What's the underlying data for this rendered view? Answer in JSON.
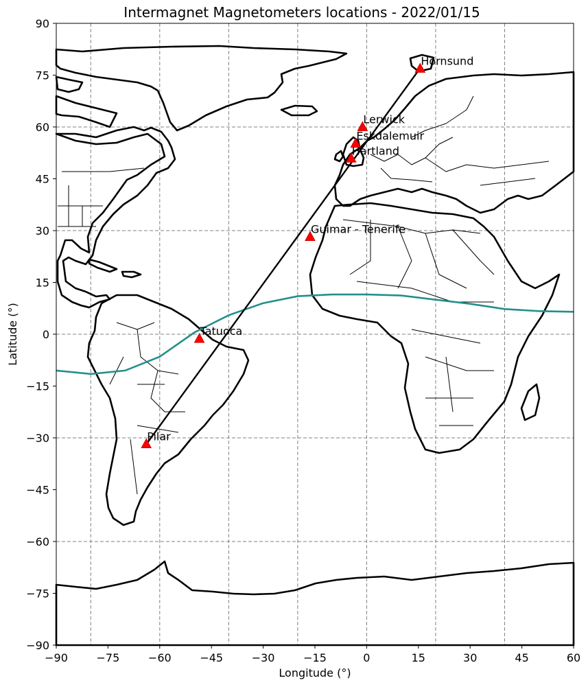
{
  "chart_data": {
    "type": "scatter",
    "title": "Intermagnet Magnetometers locations - 2022/01/15",
    "xlabel": "Longitude (°)",
    "ylabel": "Latitude (°)",
    "xlim": [
      -90,
      60
    ],
    "ylim": [
      -90,
      90
    ],
    "xticks": [
      -90,
      -75,
      -60,
      -45,
      -30,
      -15,
      0,
      15,
      30,
      45,
      60
    ],
    "xtick_labels": [
      "−90",
      "−75",
      "−60",
      "−45",
      "−30",
      "−15",
      "0",
      "15",
      "30",
      "45",
      "60"
    ],
    "yticks": [
      -90,
      -75,
      -60,
      -45,
      -30,
      -15,
      0,
      15,
      30,
      45,
      60,
      75,
      90
    ],
    "ytick_labels": [
      "−90",
      "−75",
      "−60",
      "−45",
      "−30",
      "−15",
      "0",
      "15",
      "30",
      "45",
      "60",
      "75",
      "90"
    ],
    "grid_lon": [
      -80,
      -60,
      -40,
      -20,
      0,
      20,
      40
    ],
    "grid_lat": [
      -60,
      -30,
      0,
      30,
      60
    ],
    "grid": true,
    "marker_color": "#ff0000",
    "equator_color": "#22908a",
    "stations": [
      {
        "name": "Hornsund",
        "lon": 15.5,
        "lat": 77.0
      },
      {
        "name": "Lerwick",
        "lon": -1.2,
        "lat": 60.1
      },
      {
        "name": "Eskdalemuir",
        "lon": -3.2,
        "lat": 55.3
      },
      {
        "name": "Hartland",
        "lon": -4.5,
        "lat": 51.0
      },
      {
        "name": "Guimar - Tenerife",
        "lon": -16.4,
        "lat": 28.3
      },
      {
        "name": "Tatuoca",
        "lon": -48.5,
        "lat": -1.2
      },
      {
        "name": "Pilar",
        "lon": -63.9,
        "lat": -31.7
      }
    ],
    "track_line": [
      [
        -64.0,
        -32.0
      ],
      [
        15.5,
        77.0
      ]
    ],
    "magnetic_equator": [
      [
        -90,
        -10.5
      ],
      [
        -80,
        -11.5
      ],
      [
        -70,
        -10.5
      ],
      [
        -60,
        -6.5
      ],
      [
        -50,
        0.5
      ],
      [
        -40,
        5.5
      ],
      [
        -30,
        9.0
      ],
      [
        -20,
        11.0
      ],
      [
        -10,
        11.5
      ],
      [
        0,
        11.5
      ],
      [
        10,
        11.2
      ],
      [
        20,
        10.0
      ],
      [
        30,
        8.8
      ],
      [
        40,
        7.3
      ],
      [
        50,
        6.7
      ],
      [
        60,
        6.5
      ]
    ]
  }
}
